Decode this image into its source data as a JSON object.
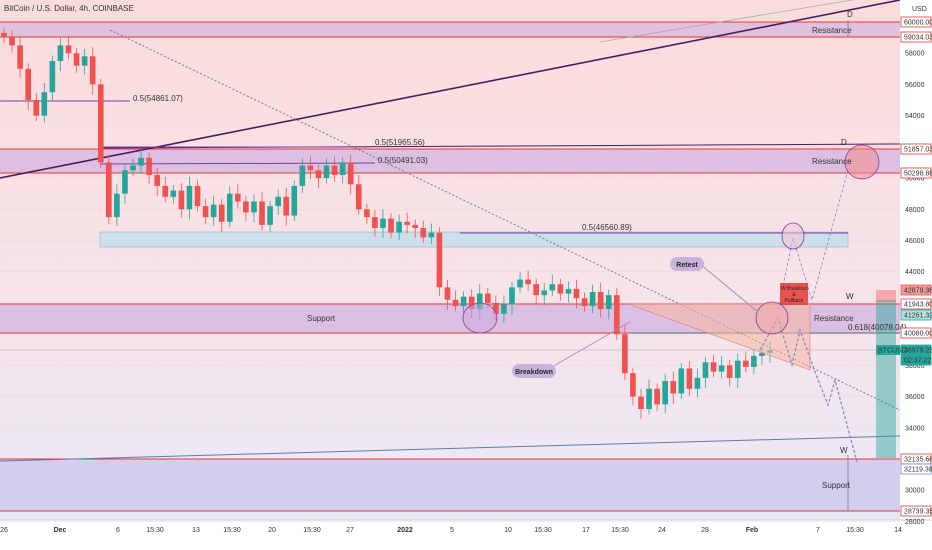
{
  "header": {
    "title": "BitCoin / U.S. Dollar, 4h, COINBASE",
    "currency": "USD"
  },
  "colors": {
    "bg_upper": "#fbdcdc",
    "bg_lower": "#e6e8f5",
    "zone_purple": "#c9a8e0",
    "zone_blue": "#c6deeb",
    "red_line": "#e53935",
    "up": "#26a69a",
    "down": "#ef5350",
    "trend_dark": "#4a1d5e",
    "trend_blue": "#5b7fa8"
  },
  "chart_data": {
    "type": "candlestick",
    "symbol": "BTCUSD",
    "interval": "4h",
    "ylim": [
      27000,
      61000
    ],
    "y_ticks": [
      28000,
      30000,
      32000,
      34000,
      36000,
      38000,
      40000,
      42000,
      44000,
      46000,
      48000,
      50000,
      52000,
      54000,
      56000,
      58000,
      60000
    ],
    "x_ticks": [
      "26",
      "Dec",
      "6",
      "15:30",
      "13",
      "15:30",
      "20",
      "15:30",
      "27",
      "2022",
      "5",
      "10",
      "15:30",
      "17",
      "15:30",
      "24",
      "28",
      "Feb",
      "7",
      "15:30",
      "14"
    ],
    "close_series": [
      59000,
      58500,
      57000,
      55000,
      54000,
      55500,
      57500,
      58500,
      58000,
      57200,
      57800,
      56000,
      51000,
      47500,
      49000,
      50500,
      50800,
      51300,
      50200,
      49500,
      48800,
      49200,
      48000,
      49500,
      48200,
      47500,
      48300,
      47200,
      49000,
      48500,
      47800,
      48500,
      47000,
      48200,
      48800,
      47600,
      49500,
      50800,
      50500,
      50000,
      50800,
      50200,
      51000,
      49600,
      48000,
      47500,
      46800,
      47400,
      46500,
      47200,
      47000,
      46800,
      46200,
      46500,
      43000,
      42200,
      41800,
      42400,
      41600,
      42600,
      42000,
      41300,
      41900,
      43000,
      43500,
      43200,
      42500,
      42800,
      43200,
      42600,
      42900,
      42300,
      41800,
      42700,
      41600,
      42500,
      40000,
      37500,
      36000,
      35200,
      36500,
      35500,
      37000,
      36200,
      37800,
      36500,
      37200,
      38200,
      37600,
      38000,
      37200,
      38300,
      37900,
      38600,
      38800,
      38979
    ],
    "last_price": 38979.23,
    "price_labels": [
      "60000.00",
      "59034.03",
      "51857.03",
      "50298.86",
      "42879.36",
      "41943.80",
      "41261.32",
      "40080.00",
      "38979.23",
      "02:37:22",
      "32135.68",
      "32119.38",
      "28739.35"
    ],
    "fib_labels": [
      "0.5(54861.07)",
      "0.5(51965.56)",
      "0.5(50491.03)",
      "0.5(46560.89)",
      "0.618(40078.04)"
    ],
    "zones": [
      "Resistance",
      "Resistance",
      "Support",
      "Resistance",
      "Support"
    ],
    "pattern_points": [
      "D",
      "D",
      "W",
      "W"
    ],
    "annotations": [
      "Retest",
      "Breakdown"
    ],
    "callout": [
      "W Breakout",
      "&",
      "Pullback"
    ]
  }
}
